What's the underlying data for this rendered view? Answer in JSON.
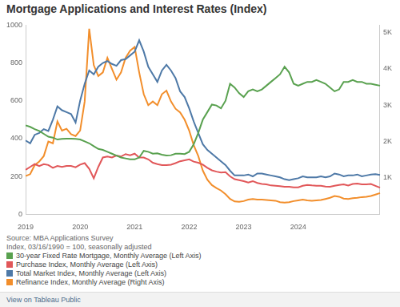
{
  "chart_data": {
    "type": "line",
    "title": "Mortgage Applications and Interest Rates (Index)",
    "notes": [
      "Source: MBA Applications Survey",
      "Index, 03/16/1990 = 100, seasonally adjusted"
    ],
    "footer": "View on Tableau Public",
    "categories": [
      "2019",
      null,
      null,
      null,
      null,
      null,
      null,
      null,
      null,
      null,
      null,
      null,
      "2020",
      null,
      null,
      null,
      null,
      null,
      null,
      null,
      null,
      null,
      null,
      null,
      "2021",
      null,
      null,
      null,
      null,
      null,
      null,
      null,
      null,
      null,
      null,
      null,
      "2022",
      null,
      null,
      null,
      null,
      null,
      null,
      null,
      null,
      null,
      null,
      null,
      "2023",
      null,
      null,
      null,
      null,
      null,
      null,
      null,
      null,
      null,
      null,
      null,
      "2024",
      null,
      null,
      null,
      null,
      null,
      null,
      null,
      null,
      null,
      null,
      null,
      null,
      null,
      null,
      null,
      null,
      null,
      null
    ],
    "series": [
      {
        "name": "30-year Fixed Rate Mortgage, Monthly Average (Left Axis)",
        "color": "#59a14f",
        "values": [
          470,
          462,
          450,
          440,
          425,
          410,
          405,
          395,
          398,
          400,
          400,
          398,
          395,
          385,
          375,
          360,
          345,
          340,
          330,
          320,
          310,
          300,
          295,
          290,
          290,
          300,
          335,
          330,
          320,
          322,
          315,
          310,
          312,
          320,
          320,
          318,
          330,
          370,
          430,
          500,
          540,
          580,
          575,
          560,
          600,
          690,
          670,
          640,
          620,
          650,
          660,
          650,
          660,
          680,
          700,
          720,
          740,
          780,
          750,
          690,
          680,
          690,
          700,
          700,
          710,
          700,
          690,
          670,
          650,
          660,
          700,
          700,
          710,
          700,
          700,
          690,
          690,
          685,
          680
        ]
      },
      {
        "name": "Purchase Index, Monthly Average (Left Axis)",
        "color": "#e15759",
        "values": [
          235,
          250,
          265,
          255,
          265,
          260,
          245,
          255,
          250,
          255,
          255,
          248,
          262,
          270,
          240,
          190,
          250,
          300,
          305,
          300,
          310,
          305,
          318,
          312,
          320,
          300,
          300,
          290,
          272,
          265,
          260,
          260,
          262,
          270,
          280,
          285,
          290,
          278,
          272,
          262,
          245,
          232,
          225,
          220,
          222,
          200,
          185,
          180,
          175,
          168,
          175,
          165,
          160,
          158,
          152,
          150,
          148,
          145,
          145,
          142,
          142,
          150,
          155,
          152,
          150,
          150,
          146,
          145,
          150,
          155,
          158,
          152,
          160,
          162,
          158,
          158,
          160,
          150,
          140
        ]
      },
      {
        "name": "Total Market Index, Monthly Average (Left Axis)",
        "color": "#4e79a7",
        "values": [
          390,
          375,
          420,
          430,
          450,
          440,
          500,
          570,
          550,
          540,
          530,
          485,
          600,
          690,
          760,
          740,
          780,
          800,
          810,
          795,
          785,
          815,
          820,
          840,
          860,
          920,
          860,
          780,
          740,
          700,
          760,
          790,
          760,
          720,
          650,
          620,
          560,
          490,
          430,
          370,
          340,
          320,
          300,
          280,
          260,
          230,
          205,
          205,
          205,
          210,
          200,
          215,
          215,
          210,
          205,
          200,
          195,
          185,
          180,
          185,
          190,
          200,
          195,
          195,
          195,
          200,
          195,
          200,
          215,
          210,
          200,
          205,
          205,
          210,
          200,
          205,
          210,
          212,
          208
        ]
      },
      {
        "name": "Refinance Index, Monthly Average (Right Axis)",
        "color": "#f28e2b",
        "axis": "y2",
        "values": [
          1050,
          1100,
          1350,
          1450,
          1600,
          2000,
          1950,
          2550,
          2300,
          2350,
          2200,
          2150,
          2300,
          3100,
          5100,
          4100,
          3800,
          3900,
          4300,
          4000,
          3700,
          3900,
          4300,
          4500,
          4600,
          3900,
          3300,
          3000,
          3100,
          3000,
          3300,
          3400,
          3100,
          2900,
          2800,
          2600,
          2300,
          1900,
          1600,
          1200,
          950,
          800,
          720,
          650,
          550,
          420,
          350,
          340,
          360,
          400,
          420,
          400,
          400,
          390,
          380,
          370,
          330,
          320,
          330,
          360,
          380,
          400,
          380,
          370,
          380,
          390,
          420,
          450,
          500,
          480,
          430,
          420,
          440,
          450,
          470,
          480,
          500,
          540,
          580
        ]
      }
    ],
    "ylim": [
      0,
      1000
    ],
    "yticks": [
      0,
      200,
      400,
      600,
      800,
      1000
    ],
    "y2lim": [
      0,
      5200
    ],
    "y2ticks": [
      {
        "value": 1000,
        "label": "1K"
      },
      {
        "value": 2000,
        "label": "2K"
      },
      {
        "value": 3000,
        "label": "3K"
      },
      {
        "value": 4000,
        "label": "4K"
      },
      {
        "value": 5000,
        "label": "5K"
      }
    ],
    "grid": false,
    "legend": "bottom"
  }
}
